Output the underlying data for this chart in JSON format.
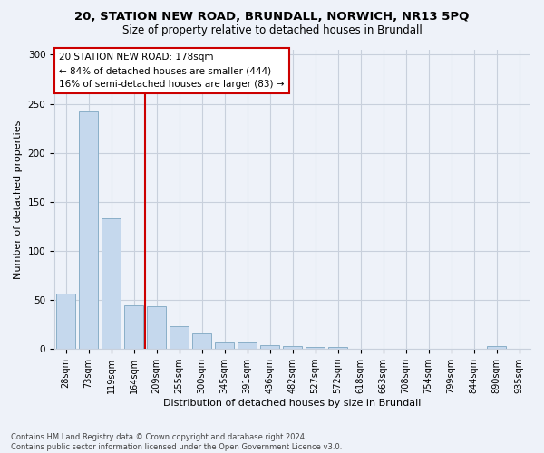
{
  "title": "20, STATION NEW ROAD, BRUNDALL, NORWICH, NR13 5PQ",
  "subtitle": "Size of property relative to detached houses in Brundall",
  "xlabel": "Distribution of detached houses by size in Brundall",
  "ylabel": "Number of detached properties",
  "bar_color": "#c5d8ed",
  "bar_edge_color": "#8aafc8",
  "categories": [
    "28sqm",
    "73sqm",
    "119sqm",
    "164sqm",
    "209sqm",
    "255sqm",
    "300sqm",
    "345sqm",
    "391sqm",
    "436sqm",
    "482sqm",
    "527sqm",
    "572sqm",
    "618sqm",
    "663sqm",
    "708sqm",
    "754sqm",
    "799sqm",
    "844sqm",
    "890sqm",
    "935sqm"
  ],
  "values": [
    57,
    242,
    133,
    45,
    44,
    23,
    16,
    7,
    7,
    4,
    3,
    2,
    2,
    0,
    0,
    0,
    0,
    0,
    0,
    3,
    0
  ],
  "ylim": [
    0,
    305
  ],
  "yticks": [
    0,
    50,
    100,
    150,
    200,
    250,
    300
  ],
  "vline_x": 3.5,
  "vline_color": "#cc0000",
  "annotation_text": "20 STATION NEW ROAD: 178sqm\n← 84% of detached houses are smaller (444)\n16% of semi-detached houses are larger (83) →",
  "annotation_box_color": "white",
  "annotation_box_edge": "#cc0000",
  "footer_line1": "Contains HM Land Registry data © Crown copyright and database right 2024.",
  "footer_line2": "Contains public sector information licensed under the Open Government Licence v3.0.",
  "bg_color": "#eef2f9",
  "grid_color": "#c8d0dc",
  "title_fontsize": 9.5,
  "subtitle_fontsize": 8.5,
  "tick_fontsize": 7,
  "ylabel_fontsize": 8,
  "xlabel_fontsize": 8,
  "annotation_fontsize": 7.5
}
